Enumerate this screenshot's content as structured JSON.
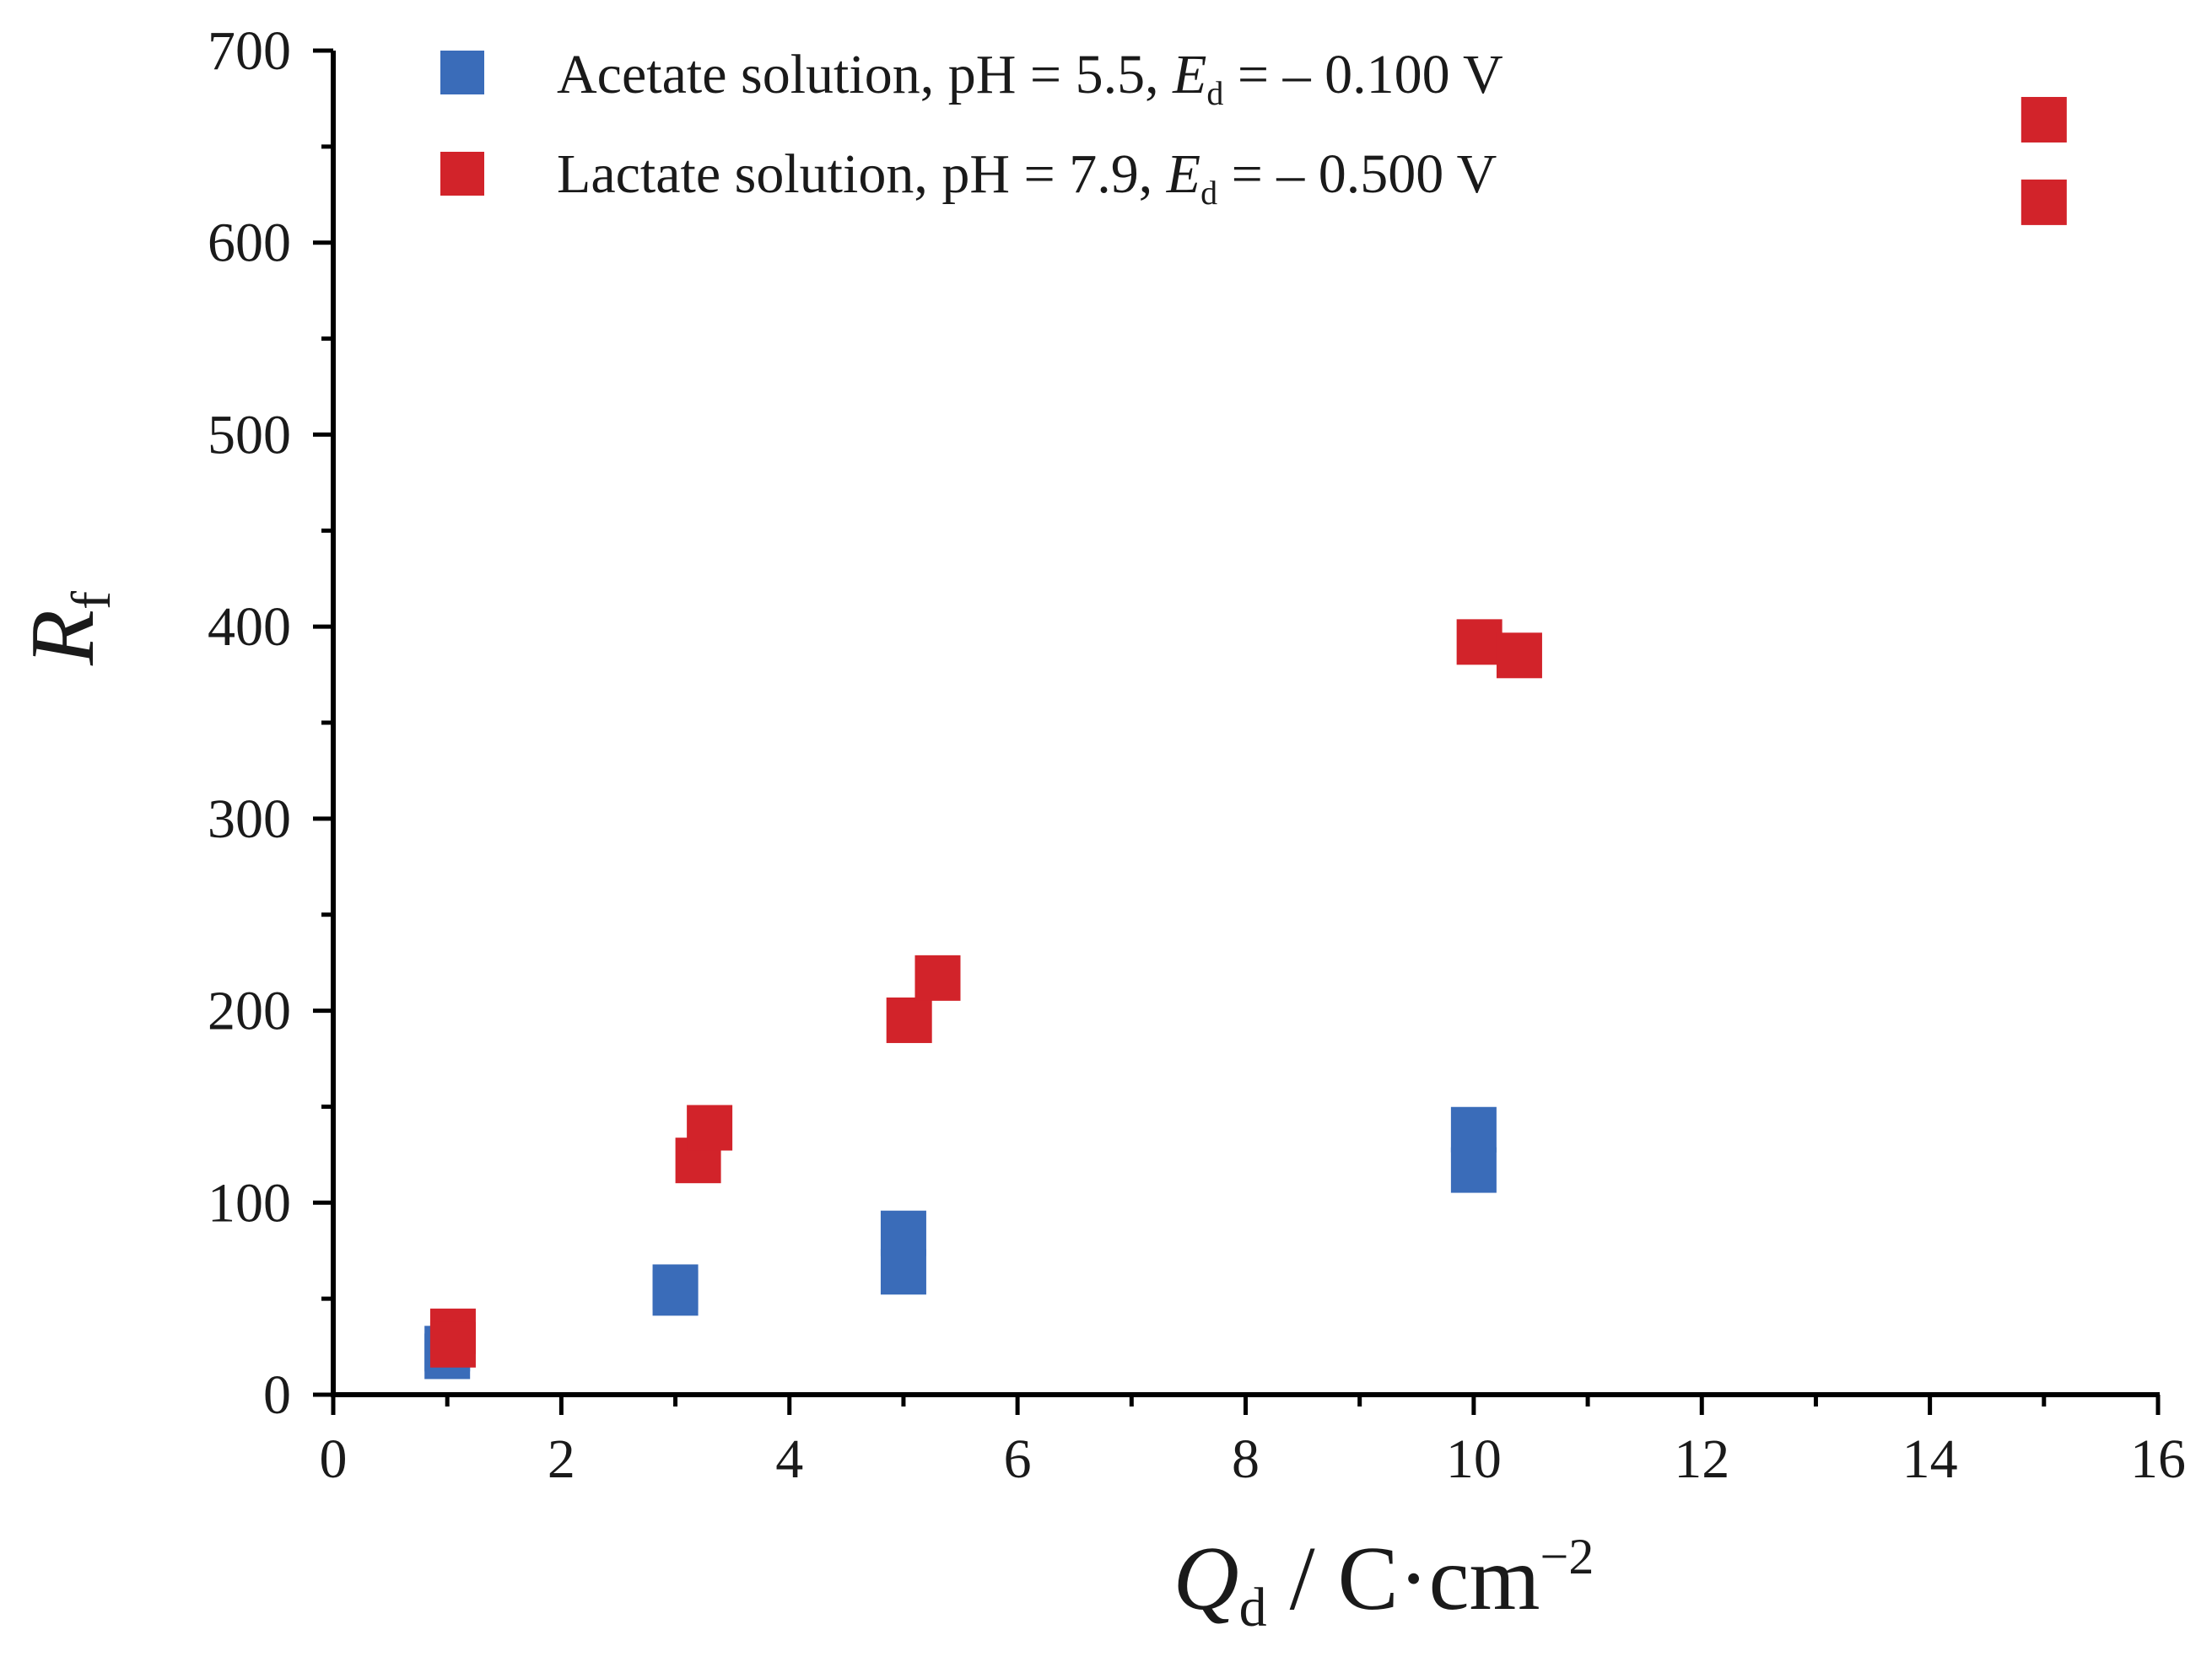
{
  "chart_data": {
    "type": "scatter",
    "title": "",
    "xlabel": {
      "symbol": "Q",
      "subscript": "d",
      "units": " / C·cm",
      "superscript": "−2"
    },
    "ylabel": {
      "symbol": "R",
      "subscript": "f"
    },
    "xlim": [
      0,
      16
    ],
    "ylim": [
      0,
      700
    ],
    "x_ticks": [
      0,
      2,
      4,
      6,
      8,
      10,
      12,
      14,
      16
    ],
    "y_ticks": [
      0,
      100,
      200,
      300,
      400,
      500,
      600,
      700
    ],
    "x_tick_labels": [
      "0",
      "2",
      "4",
      "6",
      "8",
      "10",
      "12",
      "14",
      "16"
    ],
    "y_tick_labels": [
      "0",
      "100",
      "200",
      "300",
      "400",
      "500",
      "600",
      "700"
    ],
    "grid": false,
    "legend_position": "top-left",
    "series": [
      {
        "name": "Acetate solution, pH = 5.5, Ed = – 0.100 V",
        "legend": {
          "prefix": "Acetate solution, pH = 5.5, ",
          "symbol": "E",
          "subscript": "d",
          "suffix": " = – 0.100 V"
        },
        "color": "#3a6cb9",
        "marker": "square",
        "points": [
          {
            "x": 1.0,
            "y": 20
          },
          {
            "x": 1.0,
            "y": 24
          },
          {
            "x": 3.0,
            "y": 53
          },
          {
            "x": 3.0,
            "y": 56
          },
          {
            "x": 5.0,
            "y": 64
          },
          {
            "x": 5.0,
            "y": 84
          },
          {
            "x": 10.0,
            "y": 117
          },
          {
            "x": 10.0,
            "y": 138
          }
        ]
      },
      {
        "name": "Lactate solution, pH = 7.9, Ed = – 0.500 V",
        "legend": {
          "prefix": "Lactate solution, pH = 7.9, ",
          "symbol": "E",
          "subscript": "d",
          "suffix": " = – 0.500 V"
        },
        "color": "#d2232a",
        "marker": "square",
        "points": [
          {
            "x": 1.05,
            "y": 33
          },
          {
            "x": 1.05,
            "y": 26
          },
          {
            "x": 3.2,
            "y": 122
          },
          {
            "x": 3.3,
            "y": 139
          },
          {
            "x": 5.05,
            "y": 195
          },
          {
            "x": 5.3,
            "y": 217
          },
          {
            "x": 10.05,
            "y": 392
          },
          {
            "x": 10.4,
            "y": 385
          },
          {
            "x": 15.0,
            "y": 664
          },
          {
            "x": 15.0,
            "y": 621
          }
        ]
      }
    ]
  }
}
